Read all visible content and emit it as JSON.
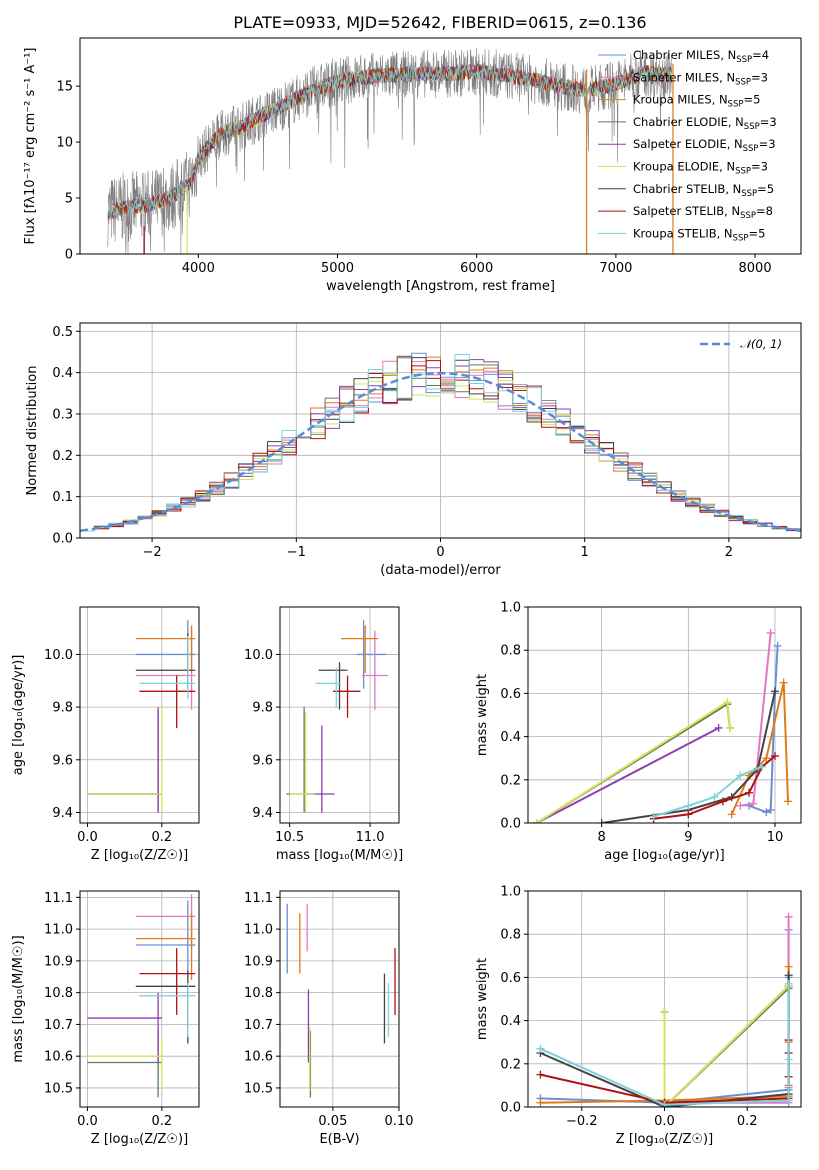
{
  "page_title": "PLATE=0933, MJD=52642, FIBERID=0615, z=0.136",
  "colors": {
    "Chabrier MILES": "#6a8fd6",
    "Salpeter MILES": "#e377c2",
    "Kroupa MILES": "#e07b1a",
    "Chabrier ELODIE": "#5a7d5a",
    "Salpeter ELODIE": "#8e3fb0",
    "Kroupa ELODIE": "#d6e35a",
    "Chabrier STELIB": "#444444",
    "Salpeter STELIB": "#b01010",
    "Kroupa STELIB": "#7dd3dc",
    "gray": "#808080"
  },
  "chart_data": [
    {
      "id": "spectrum",
      "type": "line",
      "xlabel": "wavelength [Angstrom, rest frame]",
      "ylabel": "Flux [fλ10⁻¹⁷ erg cm⁻² s⁻¹ A⁻¹]",
      "xlim": [
        3150,
        8330
      ],
      "ylim": [
        0,
        19.3
      ],
      "xticks": [
        "4000",
        "5000",
        "6000",
        "7000",
        "8000"
      ],
      "yticks": [
        "0",
        "5",
        "10",
        "15"
      ],
      "legend_position": "right",
      "legend": [
        {
          "name": "Chabrier MILES",
          "base": "Chabrier MILES, N",
          "sub": "SSP",
          "suffix": "=4"
        },
        {
          "name": "Salpeter MILES",
          "base": "Salpeter MILES, N",
          "sub": "SSP",
          "suffix": "=3"
        },
        {
          "name": "Kroupa MILES",
          "base": "Kroupa MILES, N",
          "sub": "SSP",
          "suffix": "=5"
        },
        {
          "name": "Chabrier ELODIE",
          "base": "Chabrier ELODIE, N",
          "sub": "SSP",
          "suffix": "=3"
        },
        {
          "name": "Salpeter ELODIE",
          "base": "Salpeter ELODIE, N",
          "sub": "SSP",
          "suffix": "=3"
        },
        {
          "name": "Kroupa ELODIE",
          "base": "Kroupa ELODIE, N",
          "sub": "SSP",
          "suffix": "=3"
        },
        {
          "name": "Chabrier STELIB",
          "base": "Chabrier STELIB, N",
          "sub": "SSP",
          "suffix": "=5"
        },
        {
          "name": "Salpeter STELIB",
          "base": "Salpeter STELIB, N",
          "sub": "SSP",
          "suffix": "=8"
        },
        {
          "name": "Kroupa STELIB",
          "base": "Kroupa STELIB, N",
          "sub": "SSP",
          "suffix": "=5"
        }
      ],
      "continuum": {
        "x": [
          3350,
          3500,
          3650,
          3800,
          3950,
          4000,
          4100,
          4200,
          4300,
          4400,
          4500,
          4600,
          4700,
          4800,
          4900,
          5000,
          5200,
          5400,
          5600,
          5800,
          6000,
          6200,
          6400,
          6600,
          6800,
          7000,
          7200,
          7400
        ],
        "y": [
          3.8,
          4.2,
          4.4,
          5.0,
          6.5,
          8.5,
          10.0,
          11.0,
          11.3,
          12.0,
          12.6,
          13.2,
          13.8,
          14.5,
          15.0,
          15.4,
          15.8,
          16.0,
          16.1,
          16.1,
          16.3,
          16.0,
          15.6,
          15.0,
          14.6,
          15.2,
          16.2,
          16.0
        ]
      },
      "spikes": [
        {
          "series": "Kroupa MILES",
          "x": 6790,
          "y0": 16.5,
          "y1": 0
        },
        {
          "series": "Kroupa MILES",
          "x": 7410,
          "y0": 17.0,
          "y1": 0
        },
        {
          "series": "Kroupa ELODIE",
          "x": 3920,
          "y0": 6.0,
          "y1": 0
        },
        {
          "series": "Salpeter STELIB",
          "x": 3610,
          "y0": 2.5,
          "y1": 0
        }
      ]
    },
    {
      "id": "histogram",
      "type": "line",
      "xlabel": "(data-model)/error",
      "ylabel": "Normed distribution",
      "xlim": [
        -2.5,
        2.5
      ],
      "ylim": [
        0,
        0.52
      ],
      "xticks": [
        -2,
        -1,
        0,
        1,
        2
      ],
      "yticks": [
        0.0,
        0.1,
        0.2,
        0.3,
        0.4,
        0.5
      ],
      "legend_position": "top-right",
      "legend": "𝒩(0, 1)",
      "bin_width": 0.1,
      "bin_start": -2.5
    },
    {
      "id": "age_vs_Z",
      "type": "scatter",
      "xlabel": "Z [log₁₀(Z/Z☉)]",
      "ylabel": "age  [log₁₀(age/yr)]",
      "xlim": [
        -0.02,
        0.3
      ],
      "ylim": [
        9.36,
        10.18
      ],
      "xticks": [
        "0.0",
        "0.2"
      ],
      "yticks": [
        "9.4",
        "9.6",
        "9.8",
        "10.0"
      ],
      "points": [
        {
          "series": "Chabrier MILES",
          "x": 0.27,
          "y": 10.0,
          "xerr": [
            0.13,
            0.29
          ],
          "yerr": [
            9.87,
            10.13
          ]
        },
        {
          "series": "Salpeter MILES",
          "x": 0.28,
          "y": 9.92,
          "xerr": [
            0.13,
            0.29
          ],
          "yerr": [
            9.79,
            10.09
          ]
        },
        {
          "series": "Kroupa MILES",
          "x": 0.28,
          "y": 10.06,
          "xerr": [
            0.13,
            0.29
          ],
          "yerr": [
            9.93,
            10.11
          ]
        },
        {
          "series": "Chabrier ELODIE",
          "x": 0.19,
          "y": 9.47,
          "xerr": [
            0.0,
            0.2
          ],
          "yerr": [
            9.4,
            9.8
          ]
        },
        {
          "series": "Salpeter ELODIE",
          "x": 0.19,
          "y": 9.47,
          "xerr": [
            0.0,
            0.2
          ],
          "yerr": [
            9.4,
            9.79
          ]
        },
        {
          "series": "Kroupa ELODIE",
          "x": 0.2,
          "y": 9.47,
          "xerr": [
            0.0,
            0.2
          ],
          "yerr": [
            9.4,
            9.8
          ]
        },
        {
          "series": "Chabrier STELIB",
          "x": 0.27,
          "y": 9.94,
          "xerr": [
            0.13,
            0.29
          ],
          "yerr": [
            9.88,
            10.08
          ]
        },
        {
          "series": "Salpeter STELIB",
          "x": 0.24,
          "y": 9.86,
          "xerr": [
            0.14,
            0.29
          ],
          "yerr": [
            9.72,
            9.92
          ]
        },
        {
          "series": "Kroupa STELIB",
          "x": 0.27,
          "y": 9.89,
          "xerr": [
            0.14,
            0.29
          ],
          "yerr": [
            9.83,
            10.07
          ]
        }
      ]
    },
    {
      "id": "age_vs_mass",
      "type": "scatter",
      "xlabel": "mass [log₁₀(M/M☉)]",
      "ylabel": "",
      "xlim": [
        10.44,
        11.18
      ],
      "ylim": [
        9.36,
        10.18
      ],
      "xticks": [
        "10.5",
        "11.0"
      ],
      "yticks": [
        "9.4",
        "9.6",
        "9.8",
        "10.0"
      ],
      "points": [
        {
          "series": "Chabrier MILES",
          "x": 10.96,
          "y": 10.0,
          "xerr": [
            10.92,
            11.1
          ],
          "yerr": [
            9.87,
            10.13
          ]
        },
        {
          "series": "Salpeter MILES",
          "x": 11.03,
          "y": 9.92,
          "xerr": [
            10.95,
            11.11
          ],
          "yerr": [
            9.79,
            10.09
          ]
        },
        {
          "series": "Kroupa MILES",
          "x": 10.97,
          "y": 10.06,
          "xerr": [
            10.82,
            11.05
          ],
          "yerr": [
            9.93,
            10.11
          ]
        },
        {
          "series": "Chabrier ELODIE",
          "x": 10.59,
          "y": 9.47,
          "xerr": [
            10.48,
            10.67
          ],
          "yerr": [
            9.4,
            9.8
          ]
        },
        {
          "series": "Salpeter ELODIE",
          "x": 10.7,
          "y": 9.47,
          "xerr": [
            10.58,
            10.78
          ],
          "yerr": [
            9.4,
            9.73
          ]
        },
        {
          "series": "Kroupa ELODIE",
          "x": 10.6,
          "y": 9.47,
          "xerr": [
            10.5,
            10.66
          ],
          "yerr": [
            9.4,
            9.78
          ]
        },
        {
          "series": "Chabrier STELIB",
          "x": 10.81,
          "y": 9.94,
          "xerr": [
            10.68,
            10.86
          ],
          "yerr": [
            9.79,
            9.97
          ]
        },
        {
          "series": "Salpeter STELIB",
          "x": 10.86,
          "y": 9.86,
          "xerr": [
            10.77,
            10.94
          ],
          "yerr": [
            9.76,
            9.92
          ]
        },
        {
          "series": "Kroupa STELIB",
          "x": 10.79,
          "y": 9.89,
          "xerr": [
            10.66,
            10.82
          ],
          "yerr": [
            9.8,
            9.95
          ]
        }
      ]
    },
    {
      "id": "weight_vs_age",
      "type": "line",
      "xlabel": "age  [log₁₀(age/yr)]",
      "ylabel": "mass weight",
      "xlim": [
        7.15,
        10.3
      ],
      "ylim": [
        0,
        1
      ],
      "xticks": [
        8,
        9,
        10
      ],
      "yticks": [
        0.0,
        0.2,
        0.4,
        0.6,
        0.8,
        1.0
      ],
      "series": [
        {
          "name": "Chabrier MILES",
          "x": [
            9.7,
            9.9,
            9.95,
            10.0,
            10.03
          ],
          "y": [
            0.08,
            0.05,
            0.06,
            0.6,
            0.82
          ]
        },
        {
          "name": "Salpeter MILES",
          "x": [
            9.6,
            9.75,
            9.95
          ],
          "y": [
            0.08,
            0.09,
            0.88
          ]
        },
        {
          "name": "Kroupa MILES",
          "x": [
            9.5,
            9.7,
            9.9,
            10.1,
            10.15
          ],
          "y": [
            0.04,
            0.22,
            0.3,
            0.65,
            0.1
          ]
        },
        {
          "name": "Chabrier ELODIE",
          "x": [
            7.25,
            9.45,
            9.48
          ],
          "y": [
            0.0,
            0.55,
            0.44
          ]
        },
        {
          "name": "Salpeter ELODIE",
          "x": [
            7.25,
            9.35
          ],
          "y": [
            0.0,
            0.44
          ]
        },
        {
          "name": "Kroupa ELODIE",
          "x": [
            7.25,
            9.45,
            9.48
          ],
          "y": [
            0.0,
            0.56,
            0.44
          ]
        },
        {
          "name": "Chabrier STELIB",
          "x": [
            8.0,
            9.0,
            9.5,
            9.8,
            10.0
          ],
          "y": [
            0.0,
            0.06,
            0.12,
            0.25,
            0.61
          ]
        },
        {
          "name": "Salpeter STELIB",
          "x": [
            8.6,
            9.0,
            9.4,
            9.7,
            9.85,
            10.0
          ],
          "y": [
            0.02,
            0.04,
            0.1,
            0.14,
            0.26,
            0.31
          ]
        },
        {
          "name": "Kroupa STELIB",
          "x": [
            8.6,
            9.0,
            9.3,
            9.6,
            9.85
          ],
          "y": [
            0.03,
            0.08,
            0.12,
            0.22,
            0.26
          ]
        }
      ]
    },
    {
      "id": "mass_vs_Z",
      "type": "scatter",
      "xlabel": "Z [log₁₀(Z/Z☉)]",
      "ylabel": "mass [log₁₀(M/M☉)]",
      "xlim": [
        -0.02,
        0.3
      ],
      "ylim": [
        10.44,
        11.12
      ],
      "xticks": [
        "0.0",
        "0.2"
      ],
      "yticks": [
        "10.5",
        "10.6",
        "10.7",
        "10.8",
        "10.9",
        "11.0",
        "11.1"
      ],
      "points": [
        {
          "series": "Chabrier MILES",
          "x": 0.27,
          "y": 10.95,
          "xerr": [
            0.13,
            0.29
          ],
          "yerr": [
            10.86,
            11.09
          ]
        },
        {
          "series": "Salpeter MILES",
          "x": 0.28,
          "y": 11.04,
          "xerr": [
            0.13,
            0.29
          ],
          "yerr": [
            10.94,
            11.11
          ]
        },
        {
          "series": "Kroupa MILES",
          "x": 0.28,
          "y": 10.97,
          "xerr": [
            0.13,
            0.29
          ],
          "yerr": [
            10.84,
            11.05
          ]
        },
        {
          "series": "Chabrier ELODIE",
          "x": 0.19,
          "y": 10.58,
          "xerr": [
            0.0,
            0.2
          ],
          "yerr": [
            10.47,
            10.68
          ]
        },
        {
          "series": "Salpeter ELODIE",
          "x": 0.19,
          "y": 10.72,
          "xerr": [
            0.0,
            0.2
          ],
          "yerr": [
            10.58,
            10.8
          ]
        },
        {
          "series": "Kroupa ELODIE",
          "x": 0.2,
          "y": 10.6,
          "xerr": [
            0.0,
            0.2
          ],
          "yerr": [
            10.49,
            10.66
          ]
        },
        {
          "series": "Chabrier STELIB",
          "x": 0.27,
          "y": 10.82,
          "xerr": [
            0.13,
            0.29
          ],
          "yerr": [
            10.64,
            10.87
          ]
        },
        {
          "series": "Salpeter STELIB",
          "x": 0.24,
          "y": 10.86,
          "xerr": [
            0.14,
            0.29
          ],
          "yerr": [
            10.73,
            10.94
          ]
        },
        {
          "series": "Kroupa STELIB",
          "x": 0.27,
          "y": 10.79,
          "xerr": [
            0.14,
            0.29
          ],
          "yerr": [
            10.66,
            10.83
          ]
        }
      ]
    },
    {
      "id": "mass_vs_ebv",
      "type": "scatter",
      "xlabel": "E(B-V)",
      "ylabel": "",
      "xlim": [
        0.01,
        0.1
      ],
      "ylim": [
        10.44,
        11.12
      ],
      "xticks": [
        "0.05",
        "0.10"
      ],
      "yticks": [
        "10.5",
        "10.6",
        "10.7",
        "10.8",
        "10.9",
        "11.0",
        "11.1"
      ],
      "points": [
        {
          "series": "Chabrier MILES",
          "x": 0.0155,
          "y": 10.95,
          "yerr": [
            10.86,
            11.08
          ]
        },
        {
          "series": "Salpeter MILES",
          "x": 0.0305,
          "y": 11.04,
          "yerr": [
            10.93,
            11.08
          ]
        },
        {
          "series": "Kroupa MILES",
          "x": 0.025,
          "y": 10.97,
          "yerr": [
            10.86,
            11.05
          ]
        },
        {
          "series": "Chabrier ELODIE",
          "x": 0.033,
          "y": 10.58,
          "yerr": [
            10.47,
            10.68
          ]
        },
        {
          "series": "Salpeter ELODIE",
          "x": 0.0315,
          "y": 10.72,
          "yerr": [
            10.58,
            10.81
          ]
        },
        {
          "series": "Kroupa ELODIE",
          "x": 0.0325,
          "y": 10.6,
          "yerr": [
            10.49,
            10.69
          ]
        },
        {
          "series": "Chabrier STELIB",
          "x": 0.089,
          "y": 10.82,
          "yerr": [
            10.64,
            10.86
          ]
        },
        {
          "series": "Salpeter STELIB",
          "x": 0.097,
          "y": 10.86,
          "yerr": [
            10.73,
            10.94
          ]
        },
        {
          "series": "Kroupa STELIB",
          "x": 0.092,
          "y": 10.79,
          "yerr": [
            10.66,
            10.83
          ]
        }
      ]
    },
    {
      "id": "weight_vs_Z",
      "type": "line",
      "xlabel": "Z [log₁₀(Z/Z☉)]",
      "ylabel": "mass weight",
      "xlim": [
        -0.33,
        0.33
      ],
      "ylim": [
        0,
        1
      ],
      "xticks": [
        "−0.2",
        "0.0",
        "0.2"
      ],
      "yticks": [
        0.0,
        0.2,
        0.4,
        0.6,
        0.8,
        1.0
      ],
      "series": [
        {
          "name": "Chabrier MILES",
          "x": [
            -0.3,
            0.0,
            0.3,
            0.3,
            0.3
          ],
          "y": [
            0.04,
            0.02,
            0.08,
            0.6,
            0.82
          ]
        },
        {
          "name": "Salpeter MILES",
          "x": [
            0.0,
            0.3,
            0.3,
            0.3
          ],
          "y": [
            0.02,
            0.02,
            0.09,
            0.88
          ]
        },
        {
          "name": "Kroupa MILES",
          "x": [
            -0.3,
            0.0,
            0.3,
            0.3,
            0.3,
            0.3
          ],
          "y": [
            0.02,
            0.03,
            0.05,
            0.3,
            0.65,
            0.1
          ]
        },
        {
          "name": "Chabrier ELODIE",
          "x": [
            0.0,
            0.0,
            0.3
          ],
          "y": [
            0.44,
            0.0,
            0.55
          ]
        },
        {
          "name": "Salpeter ELODIE",
          "x": [
            0.0,
            0.0,
            0.3
          ],
          "y": [
            0.44,
            0.0,
            0.56
          ]
        },
        {
          "name": "Kroupa ELODIE",
          "x": [
            0.0,
            0.0,
            0.3
          ],
          "y": [
            0.44,
            0.0,
            0.56
          ]
        },
        {
          "name": "Chabrier STELIB",
          "x": [
            -0.3,
            0.0,
            0.3,
            0.3,
            0.3
          ],
          "y": [
            0.25,
            0.0,
            0.06,
            0.25,
            0.61
          ]
        },
        {
          "name": "Salpeter STELIB",
          "x": [
            -0.3,
            0.0,
            0.3,
            0.3,
            0.3
          ],
          "y": [
            0.15,
            0.02,
            0.04,
            0.14,
            0.31
          ]
        },
        {
          "name": "Kroupa STELIB",
          "x": [
            -0.3,
            0.0,
            0.3,
            0.3,
            0.3
          ],
          "y": [
            0.27,
            0.01,
            0.03,
            0.22,
            0.57
          ]
        }
      ]
    }
  ]
}
